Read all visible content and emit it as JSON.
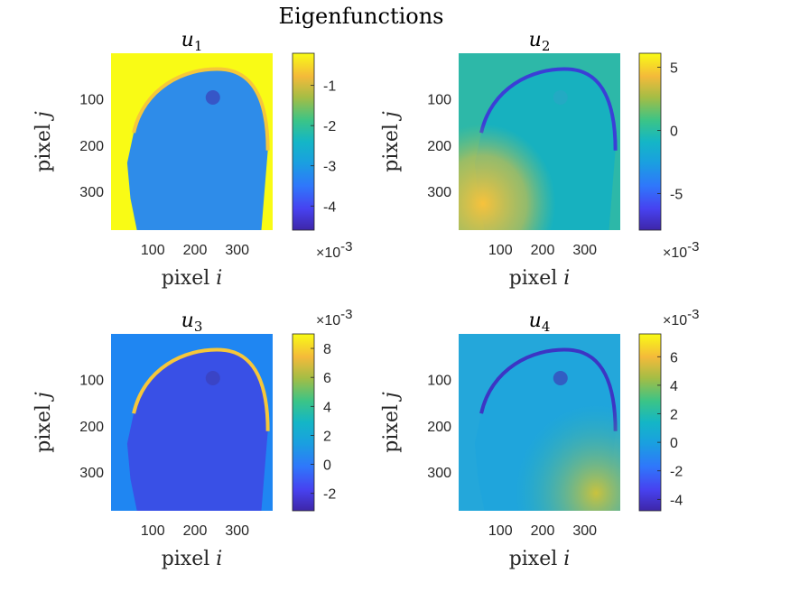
{
  "figure": {
    "title": "Eigenfunctions"
  },
  "chart_data": [
    {
      "type": "heatmap",
      "title": "u",
      "title_sub": "1",
      "xlabel": "pixel",
      "xlabel_var": "i",
      "ylabel": "pixel",
      "ylabel_var": "j",
      "xticks": [
        100,
        200,
        300
      ],
      "yticks": [
        100,
        200,
        300
      ],
      "xlim": [
        1,
        384
      ],
      "ylim": [
        1,
        384
      ],
      "colormap": "parula",
      "colorbar": {
        "ticks": [
          "-1",
          "-2",
          "-3",
          "-4"
        ],
        "tick_values": [
          -1,
          -2,
          -3,
          -4
        ],
        "range": [
          -4.6,
          -0.2
        ],
        "exponent_base": "×10",
        "exponent": "-3",
        "exponent_position": "bottom"
      }
    },
    {
      "type": "heatmap",
      "title": "u",
      "title_sub": "2",
      "xlabel": "pixel",
      "xlabel_var": "i",
      "ylabel": "pixel",
      "ylabel_var": "j",
      "xticks": [
        100,
        200,
        300
      ],
      "yticks": [
        100,
        200,
        300
      ],
      "xlim": [
        1,
        384
      ],
      "ylim": [
        1,
        384
      ],
      "colormap": "parula",
      "colorbar": {
        "ticks": [
          "5",
          "0",
          "-5"
        ],
        "tick_values": [
          5,
          0,
          -5
        ],
        "range": [
          -7.9,
          6.1
        ],
        "exponent_base": "×10",
        "exponent": "-3",
        "exponent_position": "bottom"
      }
    },
    {
      "type": "heatmap",
      "title": "u",
      "title_sub": "3",
      "xlabel": "pixel",
      "xlabel_var": "i",
      "ylabel": "pixel",
      "ylabel_var": "j",
      "xticks": [
        100,
        200,
        300
      ],
      "yticks": [
        100,
        200,
        300
      ],
      "xlim": [
        1,
        384
      ],
      "ylim": [
        1,
        384
      ],
      "colormap": "parula",
      "colorbar": {
        "ticks": [
          "8",
          "6",
          "4",
          "2",
          "0",
          "-2"
        ],
        "tick_values": [
          8,
          6,
          4,
          2,
          0,
          -2
        ],
        "range": [
          -3.2,
          9.0
        ],
        "exponent_base": "×10",
        "exponent": "-3",
        "exponent_position": "top"
      }
    },
    {
      "type": "heatmap",
      "title": "u",
      "title_sub": "4",
      "xlabel": "pixel",
      "xlabel_var": "i",
      "ylabel": "pixel",
      "ylabel_var": "j",
      "xticks": [
        100,
        200,
        300
      ],
      "yticks": [
        100,
        200,
        300
      ],
      "xlim": [
        1,
        384
      ],
      "ylim": [
        1,
        384
      ],
      "colormap": "parula",
      "colorbar": {
        "ticks": [
          "6",
          "4",
          "2",
          "0",
          "-2",
          "-4"
        ],
        "tick_values": [
          6,
          4,
          2,
          0,
          -2,
          -4
        ],
        "range": [
          -4.8,
          7.6
        ],
        "exponent_base": "×10",
        "exponent": "-3",
        "exponent_position": "top"
      }
    }
  ]
}
